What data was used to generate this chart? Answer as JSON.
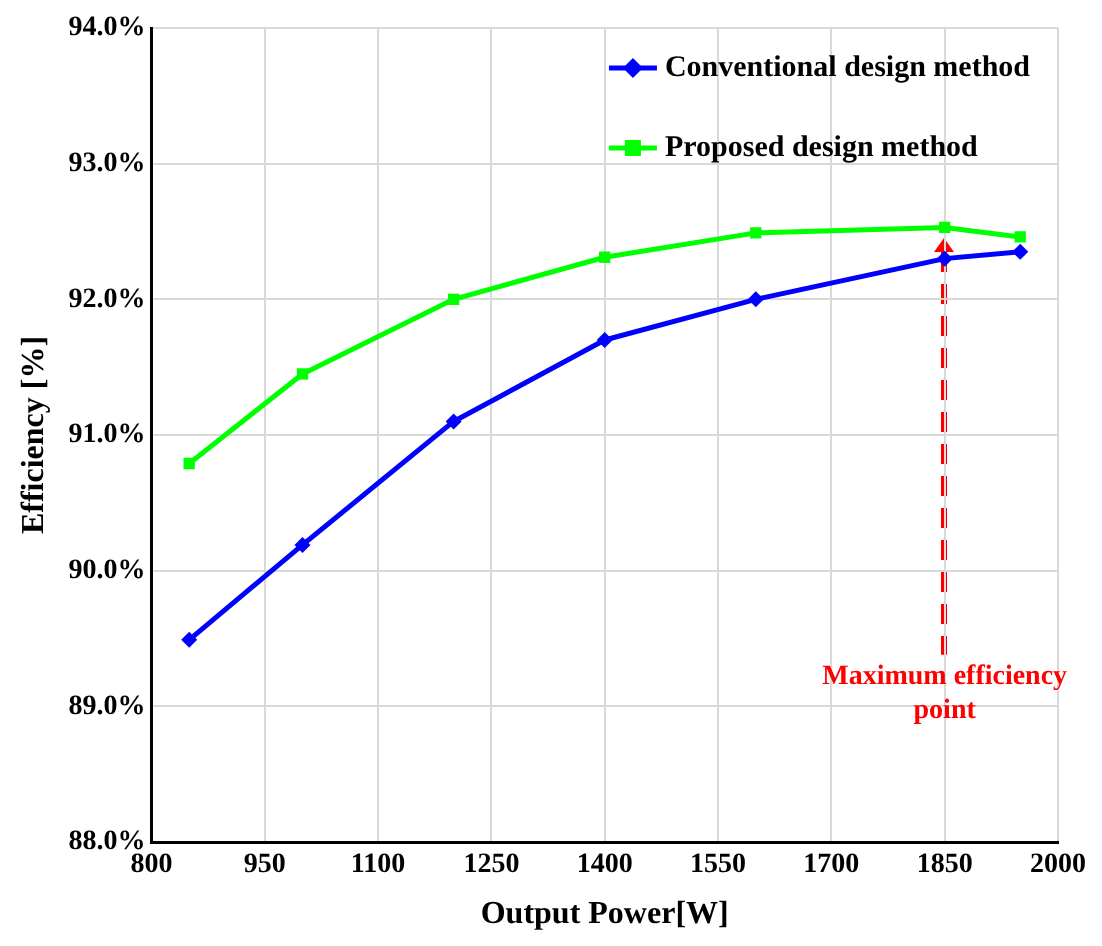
{
  "chart_data": {
    "type": "line",
    "xlabel": "Output Power[W]",
    "ylabel": "Efficiency [%]",
    "xlim": [
      800,
      2000
    ],
    "xticks": [
      800,
      950,
      1100,
      1250,
      1400,
      1550,
      1700,
      1850,
      2000
    ],
    "ylim": [
      88,
      94
    ],
    "yticks": [
      {
        "value": 88,
        "label": "88.0%"
      },
      {
        "value": 89,
        "label": "89.0%"
      },
      {
        "value": 90,
        "label": "90.0%"
      },
      {
        "value": 91,
        "label": "91.0%"
      },
      {
        "value": 92,
        "label": "92.0%"
      },
      {
        "value": 93,
        "label": "93.0%"
      },
      {
        "value": 94,
        "label": "94.0%"
      }
    ],
    "x": [
      850,
      1000,
      1200,
      1400,
      1600,
      1850,
      1950
    ],
    "series": [
      {
        "name": "Conventional design method",
        "color": "#0000ff",
        "marker": "diamond",
        "values": [
          89.49,
          90.19,
          91.1,
          91.7,
          92.0,
          92.3,
          92.35
        ]
      },
      {
        "name": "Proposed design method",
        "color": "#00ff00",
        "marker": "square",
        "values": [
          90.79,
          91.45,
          92.0,
          92.31,
          92.49,
          92.53,
          92.46
        ]
      }
    ],
    "annotations": [
      {
        "text": "Maximum efficiency point",
        "x": 1850,
        "y": 92.45
      }
    ],
    "grid": true,
    "legend": "top right"
  }
}
